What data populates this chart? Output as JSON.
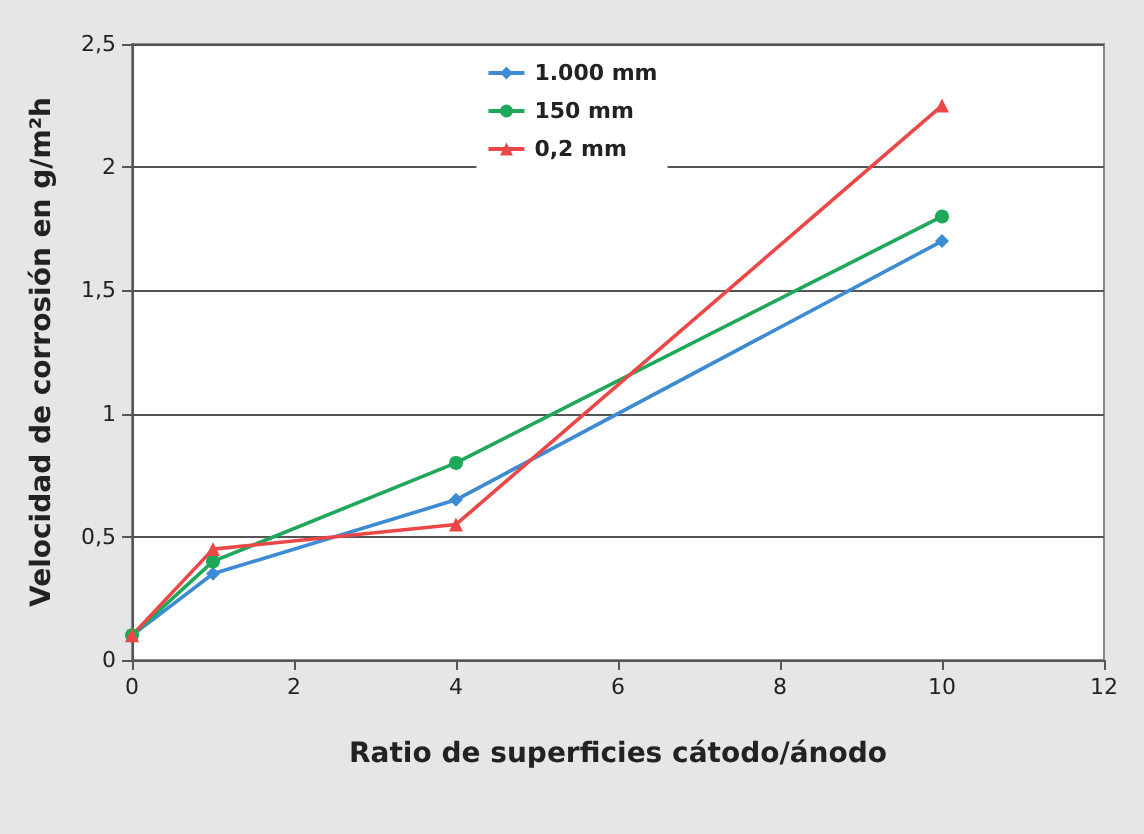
{
  "chart_data": {
    "type": "line",
    "xlabel": "Ratio de superficies cátodo/ánodo",
    "ylabel": "Velocidad de corrosión en g/m²h",
    "x": [
      0,
      1,
      4,
      10
    ],
    "series": [
      {
        "name": "1.000 mm",
        "color": "#3d8bd3",
        "marker": "diamond",
        "values": [
          0.1,
          0.35,
          0.65,
          1.7
        ]
      },
      {
        "name": "150 mm",
        "color": "#1fa85a",
        "marker": "circle",
        "values": [
          0.1,
          0.4,
          0.8,
          1.8
        ]
      },
      {
        "name": "0,2 mm",
        "color": "#ec4747",
        "marker": "triangle",
        "values": [
          0.1,
          0.45,
          0.55,
          2.25
        ]
      }
    ],
    "xlim": [
      0,
      12
    ],
    "xticks": [
      0,
      2,
      4,
      6,
      8,
      10,
      12
    ],
    "ylim": [
      0,
      2.5
    ],
    "yticks": [
      0,
      {
        "value": 0.5,
        "label": "0,5"
      },
      1,
      {
        "value": 1.5,
        "label": "1,5"
      },
      2,
      {
        "value": 2.5,
        "label": "2,5"
      }
    ],
    "grid": "y",
    "legend": "top"
  }
}
